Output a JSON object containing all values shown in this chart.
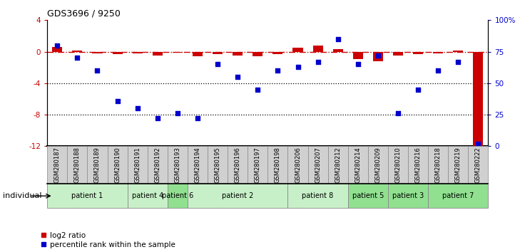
{
  "title": "GDS3696 / 9250",
  "samples": [
    "GSM280187",
    "GSM280188",
    "GSM280189",
    "GSM280190",
    "GSM280191",
    "GSM280192",
    "GSM280193",
    "GSM280194",
    "GSM280195",
    "GSM280196",
    "GSM280197",
    "GSM280198",
    "GSM280206",
    "GSM280207",
    "GSM280212",
    "GSM280214",
    "GSM280209",
    "GSM280210",
    "GSM280216",
    "GSM280218",
    "GSM280219",
    "GSM280222"
  ],
  "log2_ratio": [
    0.6,
    0.1,
    -0.2,
    -0.3,
    -0.2,
    -0.5,
    -0.15,
    -0.6,
    -0.3,
    -0.5,
    -0.6,
    -0.3,
    0.5,
    0.8,
    0.3,
    -0.9,
    -1.2,
    -0.5,
    -0.3,
    -0.2,
    0.1,
    -12.0
  ],
  "percentile": [
    80,
    70,
    60,
    36,
    30,
    22,
    26,
    22,
    65,
    55,
    45,
    60,
    63,
    67,
    85,
    65,
    72,
    26,
    45,
    60,
    67,
    2
  ],
  "patients": [
    {
      "name": "patient 1",
      "start": 0,
      "end": 4,
      "color": "#c8f0c8"
    },
    {
      "name": "patient 4",
      "start": 4,
      "end": 6,
      "color": "#c8f0c8"
    },
    {
      "name": "patient 6",
      "start": 6,
      "end": 7,
      "color": "#90e090"
    },
    {
      "name": "patient 2",
      "start": 7,
      "end": 12,
      "color": "#c8f0c8"
    },
    {
      "name": "patient 8",
      "start": 12,
      "end": 15,
      "color": "#c8f0c8"
    },
    {
      "name": "patient 5",
      "start": 15,
      "end": 17,
      "color": "#90e090"
    },
    {
      "name": "patient 3",
      "start": 17,
      "end": 19,
      "color": "#90e090"
    },
    {
      "name": "patient 7",
      "start": 19,
      "end": 22,
      "color": "#90e090"
    }
  ],
  "ylim_left": [
    -12,
    4
  ],
  "ylim_right": [
    0,
    100
  ],
  "yticks_left": [
    -12,
    -8,
    -4,
    0,
    4
  ],
  "yticks_right": [
    0,
    25,
    50,
    75,
    100
  ],
  "ytick_labels_right": [
    "0",
    "25",
    "50",
    "75",
    "100%"
  ],
  "bar_color": "#cc0000",
  "scatter_color": "#0000cc",
  "hline_color": "#cc0000",
  "dotted_color": "#000000"
}
